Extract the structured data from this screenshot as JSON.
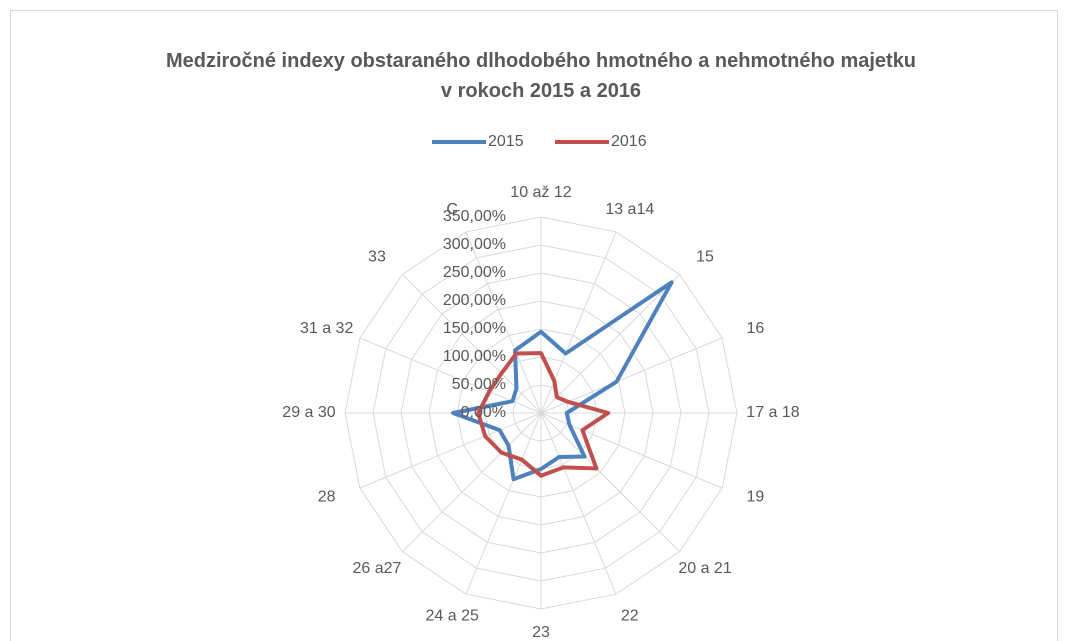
{
  "chart_data": {
    "type": "radar",
    "title": "Medziročné indexy obstaraného dlhodobého hmotného a nehmotného majetku v rokoch 2015 a 2016",
    "categories": [
      "10 až 12",
      "13 a14",
      "15",
      "16",
      "17 a 18",
      "19",
      "20 a 21",
      "22",
      "23",
      "24 a 25",
      "26 a27",
      "28",
      "29 a 30",
      "31 a 32",
      "33",
      "C"
    ],
    "series": [
      {
        "name": "2015",
        "color": "#4f81bd",
        "values": [
          145,
          115,
          330,
          146,
          46,
          55,
          110,
          85,
          100,
          128,
          82,
          80,
          157,
          55,
          62,
          121
        ]
      },
      {
        "name": "2016",
        "color": "#c0504d",
        "values": [
          107,
          62,
          40,
          52,
          120,
          80,
          140,
          105,
          112,
          90,
          100,
          108,
          112,
          100,
          100,
          115
        ]
      }
    ],
    "ylim": [
      0,
      350
    ],
    "yticks": [
      {
        "value": 0,
        "label": "0,00%"
      },
      {
        "value": 50,
        "label": "50,00%"
      },
      {
        "value": 100,
        "label": "100,00%"
      },
      {
        "value": 150,
        "label": "150,00%"
      },
      {
        "value": 200,
        "label": "200,00%"
      },
      {
        "value": 250,
        "label": "250,00%"
      },
      {
        "value": 300,
        "label": "300,00%"
      },
      {
        "value": 350,
        "label": "350,00%"
      }
    ],
    "grid": true,
    "legend": "top"
  }
}
